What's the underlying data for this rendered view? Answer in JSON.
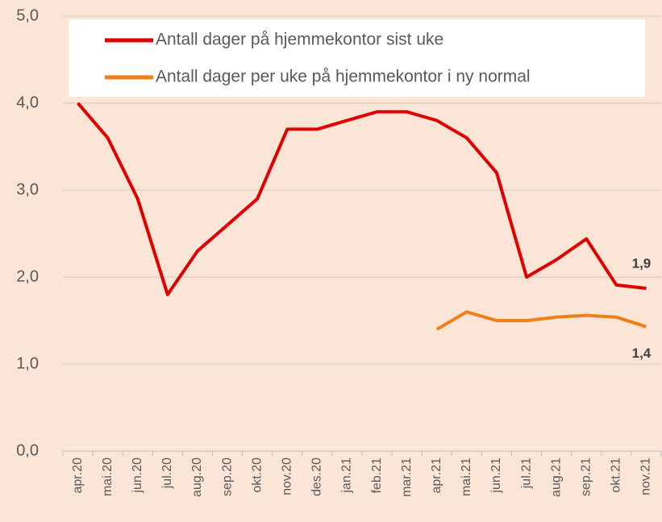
{
  "chart_data": {
    "type": "line",
    "categories": [
      "apr.20",
      "mai.20",
      "jun.20",
      "jul.20",
      "aug.20",
      "sep.20",
      "okt.20",
      "nov.20",
      "des.20",
      "jan.21",
      "feb.21",
      "mar.21",
      "apr.21",
      "mai.21",
      "jun.21",
      "jul.21",
      "aug.21",
      "sep.21",
      "okt.21",
      "nov.21"
    ],
    "series": [
      {
        "name": "Antall dager på hjemmekontor sist uke",
        "color": "#e00000",
        "values": [
          4.0,
          3.6,
          2.9,
          1.8,
          2.3,
          2.6,
          2.9,
          3.7,
          3.7,
          3.8,
          3.9,
          3.9,
          3.8,
          3.6,
          3.2,
          2.0,
          2.2,
          2.44,
          1.91,
          1.87
        ],
        "value_labels": [
          null,
          null,
          null,
          null,
          null,
          null,
          null,
          null,
          null,
          null,
          null,
          null,
          null,
          null,
          null,
          null,
          null,
          null,
          null,
          "1,9"
        ]
      },
      {
        "name": "Antall dager per uke på hjemmekontor i ny normal",
        "color": "#f07f17",
        "values": [
          null,
          null,
          null,
          null,
          null,
          null,
          null,
          null,
          null,
          null,
          null,
          null,
          1.4,
          1.6,
          1.5,
          1.5,
          1.54,
          1.56,
          1.54,
          1.43
        ],
        "value_labels": [
          null,
          null,
          null,
          null,
          null,
          null,
          null,
          null,
          null,
          null,
          null,
          null,
          null,
          null,
          null,
          null,
          null,
          null,
          null,
          "1,4"
        ]
      }
    ],
    "ylim": [
      0,
      5
    ],
    "yticks": [
      {
        "value": 0,
        "label": "0,0"
      },
      {
        "value": 1,
        "label": "1,0"
      },
      {
        "value": 2,
        "label": "2,0"
      },
      {
        "value": 3,
        "label": "3,0"
      },
      {
        "value": 4,
        "label": "4,0"
      },
      {
        "value": 5,
        "label": "5,0"
      }
    ],
    "grid": true,
    "legend": "top"
  }
}
